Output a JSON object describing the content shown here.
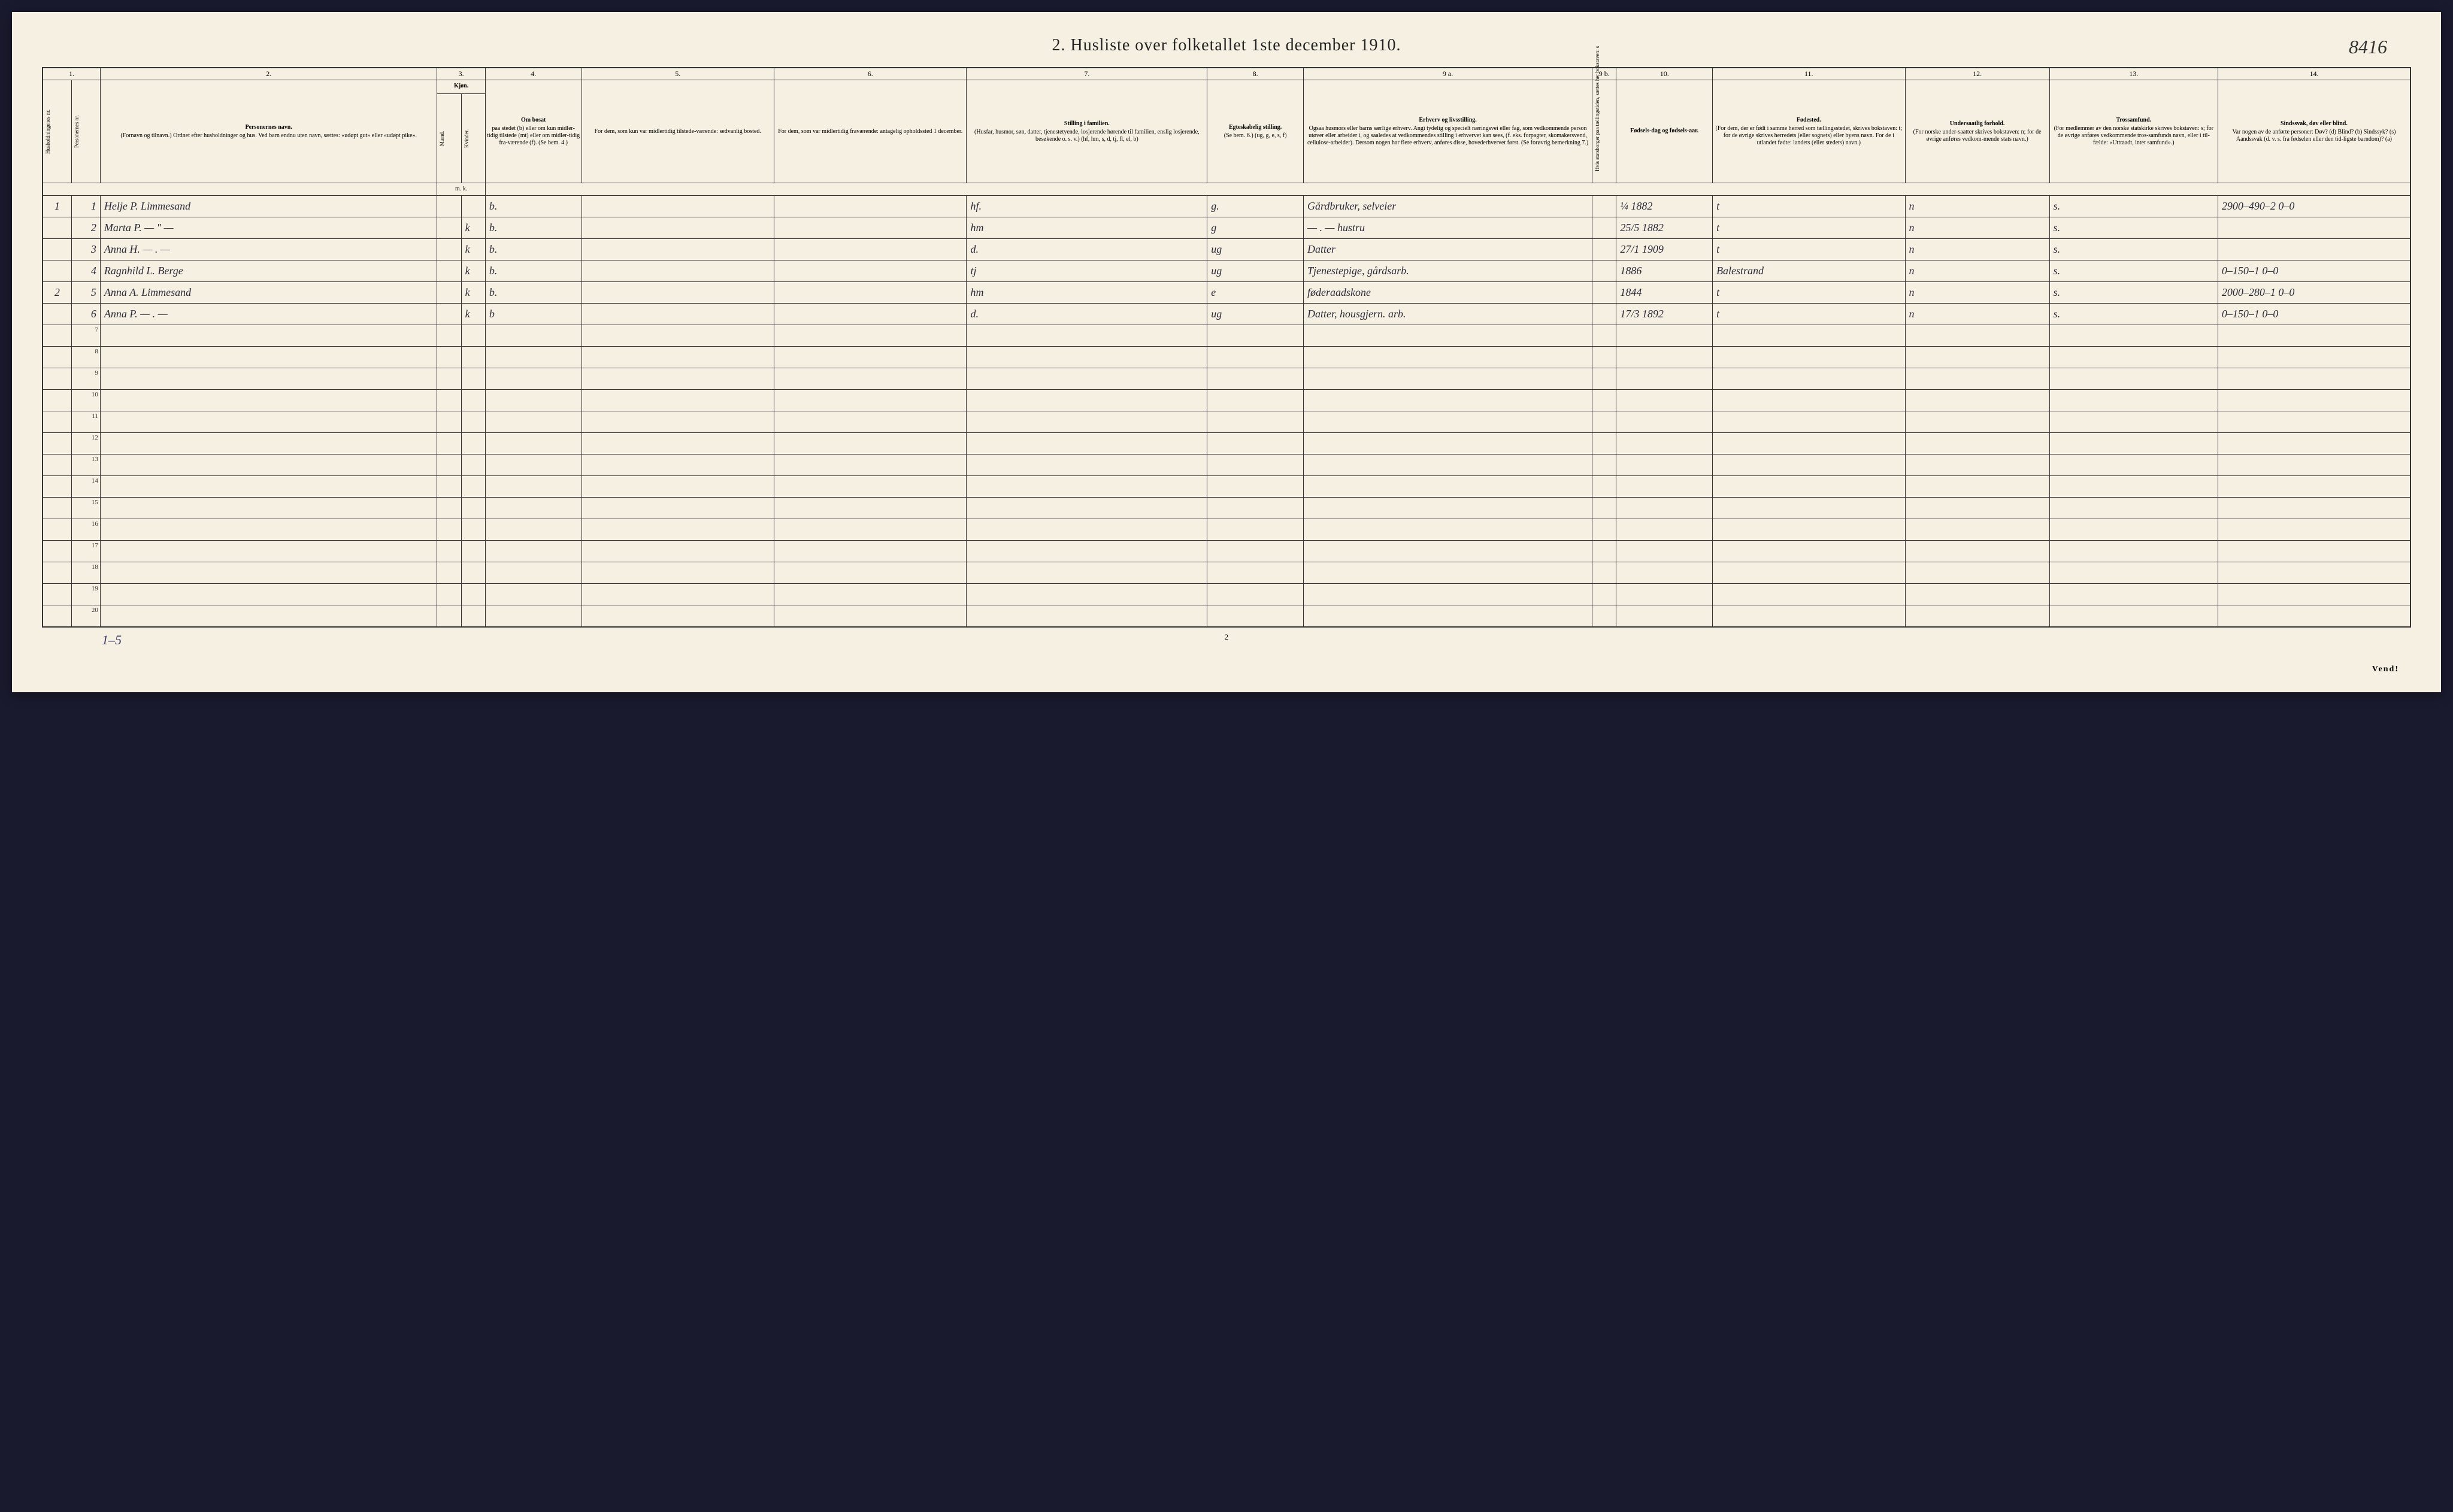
{
  "document": {
    "title": "2.  Husliste over folketallet 1ste december 1910.",
    "handwritten_page_number": "8416",
    "footer_page_number": "2",
    "footer_tally": "1–5",
    "footer_vend": "Vend!"
  },
  "column_numbers": [
    "1.",
    "2.",
    "3.",
    "4.",
    "5.",
    "6.",
    "7.",
    "8.",
    "9 a.",
    "9 b.",
    "10.",
    "11.",
    "12.",
    "13.",
    "14."
  ],
  "headers": {
    "col1a": "Husholdningenes nr.",
    "col1b": "Personernes nr.",
    "col2_strong": "Personernes navn.",
    "col2_sub": "(Fornavn og tilnavn.)\nOrdnet efter husholdninger og hus.\nVed barn endnu uten navn, sættes: «udøpt gut» eller «udøpt pike».",
    "col3_strong": "Kjøn.",
    "col3_m": "Mænd.",
    "col3_k": "Kvinder.",
    "col3_mk": "m. k.",
    "col4_strong": "Om bosat",
    "col4_sub": "paa stedet (b) eller om kun midler-tidig tilstede (mt) eller om midler-tidig fra-værende (f). (Se bem. 4.)",
    "col5": "For dem, som kun var midlertidig tilstede-værende:\nsedvanlig bosted.",
    "col6": "For dem, som var midlertidig fraværende:\nantagelig opholdssted 1 december.",
    "col7_strong": "Stilling i familien.",
    "col7_sub": "(Husfar, husmor, søn, datter, tjenestetyende, losjerende hørende til familien, enslig losjerende, besøkende o. s. v.)\n(hf, hm, s, d, tj, fl, el, b)",
    "col8_strong": "Egteskabelig stilling.",
    "col8_sub": "(Se bem. 6.)\n(ug, g, e, s, f)",
    "col9a_strong": "Erhverv og livsstilling.",
    "col9a_sub": "Ogsaa husmors eller barns særlige erhverv. Angi tydelig og specielt næringsvei eller fag, som vedkommende person utøver eller arbeider i, og saaledes at vedkommendes stilling i erhvervet kan sees, (f. eks. forpagter, skomakersvend, cellulose-arbeider). Dersom nogen har flere erhverv, anføres disse, hovederhvervet først.\n(Se forøvrig bemerkning 7.)",
    "col9b": "Hvis statsborger paa tællingstiden, sættes her bokstaven: s",
    "col10_strong": "Fødsels-dag og fødsels-aar.",
    "col11_strong": "Fødested.",
    "col11_sub": "(For dem, der er født i samme herred som tællingsstedet, skrives bokstaven: t; for de øvrige skrives herredets (eller sognets) eller byens navn. For de i utlandet fødte: landets (eller stedets) navn.)",
    "col12_strong": "Undersaatlig forhold.",
    "col12_sub": "(For norske under-saatter skrives bokstaven: n; for de øvrige anføres vedkom-mende stats navn.)",
    "col13_strong": "Trossamfund.",
    "col13_sub": "(For medlemmer av den norske statskirke skrives bokstaven: s; for de øvrige anføres vedkommende tros-samfunds navn, eller i til-fælde: «Uttraadt, intet samfund».)",
    "col14_strong": "Sindssvak, døv eller blind.",
    "col14_sub": "Var nogen av de anførte personer:\nDøv? (d)\nBlind? (b)\nSindssyk? (s)\nAandssvak (d. v. s. fra fødselen eller den tid-ligste barndom)? (a)"
  },
  "rows": [
    {
      "hh": "1",
      "pn": "1",
      "name": "Helje P. Limmesand",
      "sex_m": "",
      "sex_k": "",
      "sex_cell": "",
      "bosat": "b.",
      "col5": "",
      "col6": "",
      "stilling": "hf.",
      "egt": "g.",
      "erhverv": "Gårdbruker, selveier",
      "col9b": "",
      "fodsel": "¼ 1882",
      "fodested": "t",
      "undersaat": "n",
      "tros": "s.",
      "col14": "2900–490–2  0–0"
    },
    {
      "hh": "",
      "pn": "2",
      "name": "Marta P.     — \" —",
      "sex_m": "",
      "sex_k": "k",
      "bosat": "b.",
      "col5": "",
      "col6": "",
      "stilling": "hm",
      "egt": "g",
      "erhverv": "— . —   hustru",
      "col9b": "",
      "fodsel": "25/5 1882",
      "fodested": "t",
      "undersaat": "n",
      "tros": "s.",
      "col14": ""
    },
    {
      "hh": "",
      "pn": "3",
      "name": "Anna H.    — . —",
      "sex_m": "",
      "sex_k": "k",
      "bosat": "b.",
      "col5": "",
      "col6": "",
      "stilling": "d.",
      "egt": "ug",
      "erhverv": "Datter",
      "col9b": "",
      "fodsel": "27/1 1909",
      "fodested": "t",
      "undersaat": "n",
      "tros": "s.",
      "col14": ""
    },
    {
      "hh": "",
      "pn": "4",
      "name": "Ragnhild L. Berge",
      "sex_m": "",
      "sex_k": "k",
      "bosat": "b.",
      "col5": "",
      "col6": "",
      "stilling": "tj",
      "egt": "ug",
      "erhverv": "Tjenestepige, gårdsarb.",
      "col9b": "",
      "fodsel": "1886",
      "fodsel_red": true,
      "fodested": "Balestrand",
      "undersaat": "n",
      "tros": "s.",
      "col14": "0–150–1  0–0"
    },
    {
      "hh": "2",
      "pn": "5",
      "name": "Anna A. Limmesand",
      "sex_m": "",
      "sex_k": "k",
      "bosat": "b.",
      "col5": "",
      "col6": "",
      "stilling": "hm",
      "egt": "e",
      "erhverv": "føderaadskone",
      "col9b": "",
      "fodsel": "1844",
      "fodested": "t",
      "undersaat": "n",
      "tros": "s.",
      "col14": "2000–280–1  0–0"
    },
    {
      "hh": "",
      "pn": "6",
      "name": "Anna P.    — . —",
      "sex_m": "",
      "sex_k": "k",
      "bosat": "b",
      "col5": "",
      "col6": "",
      "stilling": "d.",
      "egt": "ug",
      "erhverv": "Datter, housgjern. arb.",
      "col9b": "",
      "fodsel": "17/3 1892",
      "fodested": "t",
      "undersaat": "n",
      "tros": "s.",
      "col14": "0–150–1  0–0"
    }
  ],
  "empty_row_numbers": [
    "7",
    "8",
    "9",
    "10",
    "11",
    "12",
    "13",
    "14",
    "15",
    "16",
    "17",
    "18",
    "19",
    "20"
  ],
  "styling": {
    "page_bg": "#f5f0e1",
    "border_color": "#333333",
    "ink_color": "#2a2a3a",
    "red_ink": "#c43a2e",
    "blue_ink": "#3a3a6a",
    "title_fontsize": 28,
    "header_fontsize": 10,
    "data_fontsize": 18
  }
}
